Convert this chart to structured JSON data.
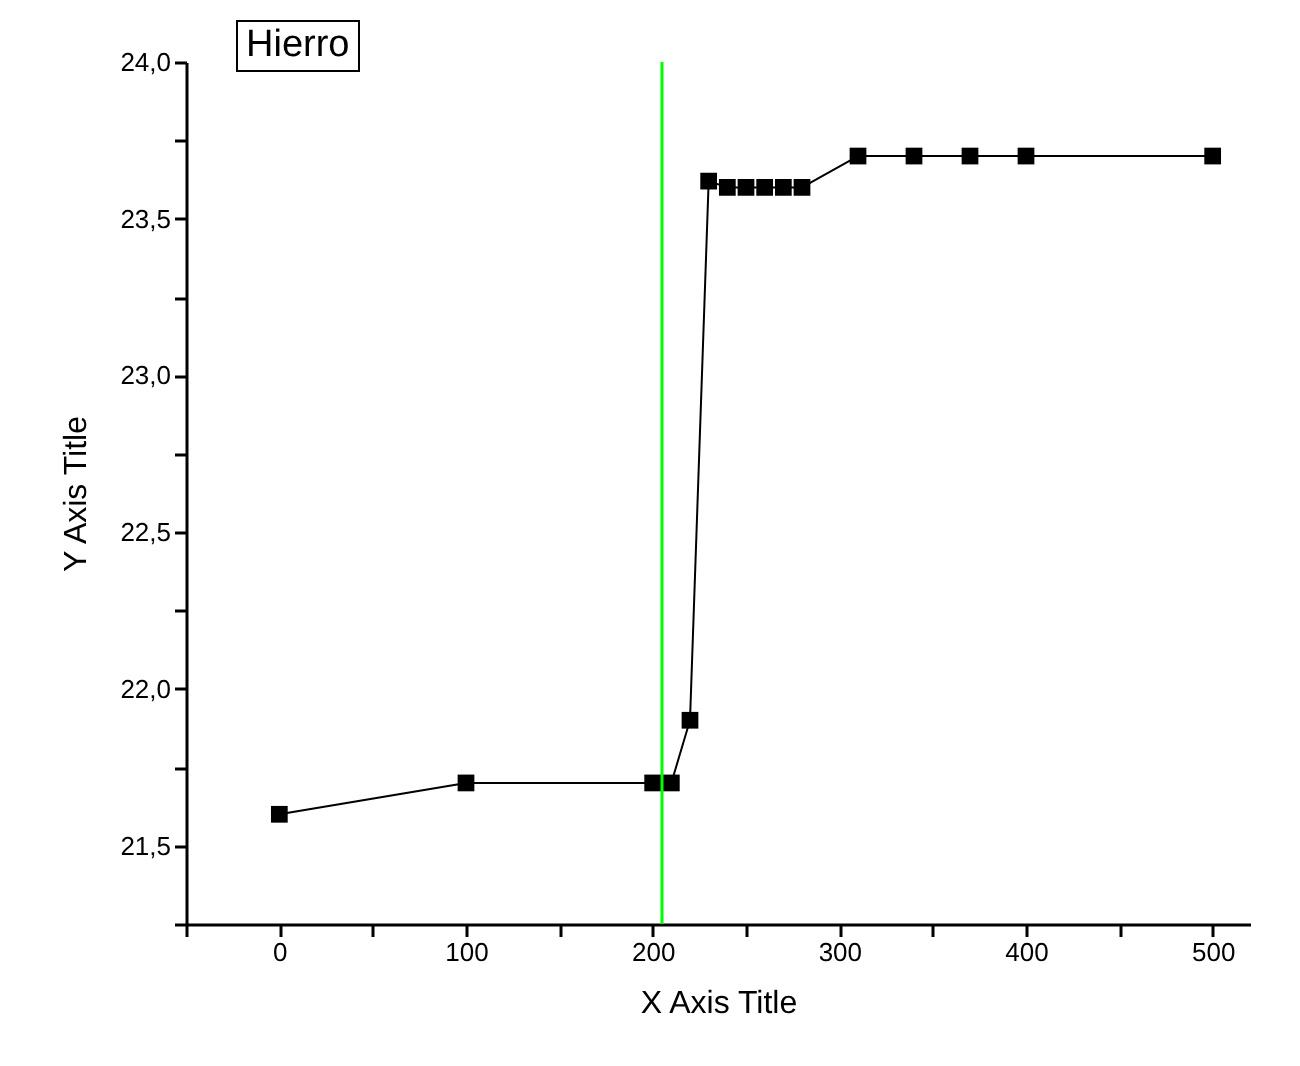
{
  "chart_data": {
    "type": "line",
    "title": "Hierro",
    "xlabel": "X Axis Title",
    "ylabel": "Y Axis Title",
    "x": [
      0,
      100,
      200,
      210,
      220,
      230,
      240,
      250,
      260,
      270,
      280,
      310,
      340,
      370,
      400,
      500
    ],
    "series": [
      {
        "color": "#000000",
        "values": [
          21.6,
          21.7,
          21.7,
          21.7,
          21.9,
          23.62,
          23.6,
          23.6,
          23.6,
          23.6,
          23.6,
          23.7,
          23.7,
          23.7,
          23.7,
          23.7
        ]
      }
    ],
    "xlim": [
      -50,
      520
    ],
    "ylim": [
      21.25,
      24.0
    ],
    "xticks": [
      {
        "value": -50,
        "label": null
      },
      0,
      {
        "value": 50,
        "label": null
      },
      100,
      {
        "value": 150,
        "label": null
      },
      200,
      {
        "value": 250,
        "label": null
      },
      300,
      {
        "value": 350,
        "label": null
      },
      400,
      {
        "value": 450,
        "label": null
      },
      500
    ],
    "yticks": [
      {
        "value": 21.25,
        "label": null
      },
      {
        "value": 21.5,
        "label": "21,5"
      },
      {
        "value": 21.75,
        "label": null
      },
      {
        "value": 22.0,
        "label": "22,0"
      },
      {
        "value": 22.25,
        "label": null
      },
      {
        "value": 22.5,
        "label": "22,5"
      },
      {
        "value": 22.75,
        "label": null
      },
      {
        "value": 23.0,
        "label": "23,0"
      },
      {
        "value": 23.25,
        "label": null
      },
      {
        "value": 23.5,
        "label": "23,5"
      },
      {
        "value": 23.75,
        "label": null
      },
      {
        "value": 24.0,
        "label": "24,0"
      }
    ],
    "ref_lines": [
      {
        "axis": "x",
        "value": 205,
        "color": "#00ff00"
      }
    ],
    "marker": "square",
    "line_style": "solid",
    "grid": false
  }
}
